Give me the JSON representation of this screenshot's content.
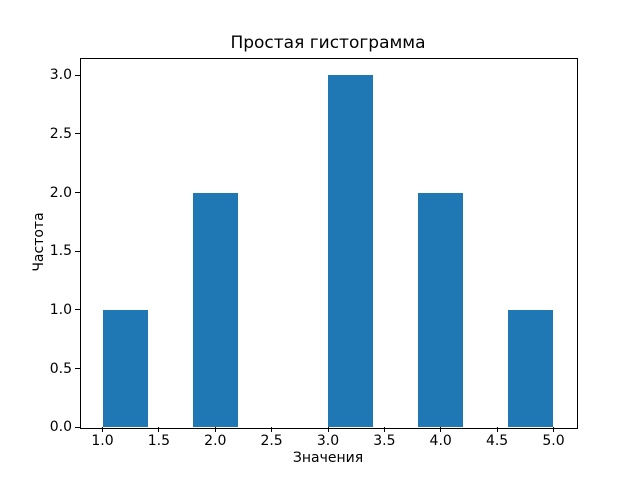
{
  "chart_data": {
    "type": "bar",
    "subtype": "histogram",
    "title": "Простая гистограмма",
    "xlabel": "Значения",
    "ylabel": "Частота",
    "bars": [
      {
        "x0": 1.0,
        "x1": 1.4,
        "count": 1
      },
      {
        "x0": 1.8,
        "x1": 2.2,
        "count": 2
      },
      {
        "x0": 3.0,
        "x1": 3.4,
        "count": 3
      },
      {
        "x0": 3.8,
        "x1": 4.2,
        "count": 2
      },
      {
        "x0": 4.6,
        "x1": 5.0,
        "count": 1
      }
    ],
    "bin_width": 0.4,
    "xticks": [
      1.0,
      1.5,
      2.0,
      2.5,
      3.0,
      3.5,
      4.0,
      4.5,
      5.0
    ],
    "xtick_labels": [
      "1.0",
      "1.5",
      "2.0",
      "2.5",
      "3.0",
      "3.5",
      "4.0",
      "4.5",
      "5.0"
    ],
    "yticks": [
      0.0,
      0.5,
      1.0,
      1.5,
      2.0,
      2.5,
      3.0
    ],
    "ytick_labels": [
      "0.0",
      "0.5",
      "1.0",
      "1.5",
      "2.0",
      "2.5",
      "3.0"
    ],
    "xlim": [
      0.8,
      5.2
    ],
    "ylim": [
      0,
      3.15
    ],
    "bar_color": "#1f77b4",
    "axis_color": "#000000",
    "grid": false,
    "legend": null
  }
}
